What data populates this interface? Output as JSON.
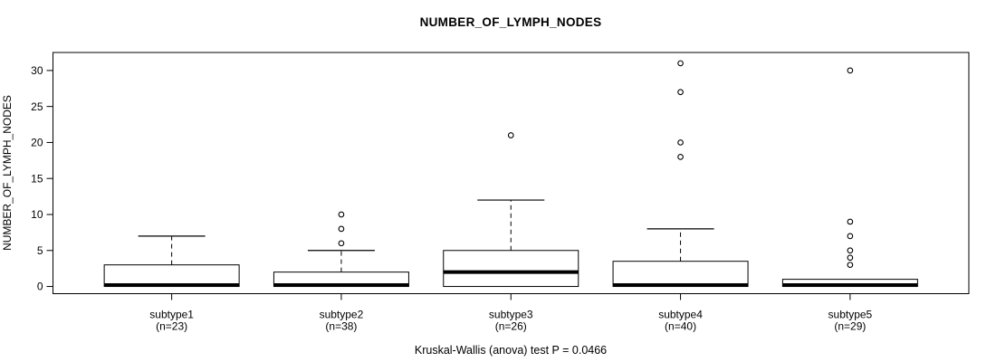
{
  "chart_data": {
    "type": "boxplot",
    "title": "NUMBER_OF_LYMPH_NODES",
    "ylabel": "NUMBER_OF_LYMPH_NODES",
    "caption": "Kruskal-Wallis (anova) test P = 0.0466",
    "p_value": 0.0466,
    "ylim": [
      -1,
      32.5
    ],
    "yticks": [
      0,
      5,
      10,
      15,
      20,
      25,
      30
    ],
    "grid": false,
    "colors": {
      "line": "#000000",
      "box_fill": "#ffffff",
      "background": "#ffffff"
    },
    "groups": [
      {
        "label": "subtype1",
        "sublabel": "(n=23)",
        "n": 23,
        "q1": 0,
        "median": 0,
        "q3": 3,
        "whisker_low": 0,
        "whisker_high": 7,
        "outliers": []
      },
      {
        "label": "subtype2",
        "sublabel": "(n=38)",
        "n": 38,
        "q1": 0,
        "median": 0,
        "q3": 2,
        "whisker_low": 0,
        "whisker_high": 5,
        "outliers": [
          6,
          8,
          10
        ]
      },
      {
        "label": "subtype3",
        "sublabel": "(n=26)",
        "n": 26,
        "q1": 0,
        "median": 2,
        "q3": 5,
        "whisker_low": 0,
        "whisker_high": 12,
        "outliers": [
          21
        ]
      },
      {
        "label": "subtype4",
        "sublabel": "(n=40)",
        "n": 40,
        "q1": 0,
        "median": 0,
        "q3": 3.5,
        "whisker_low": 0,
        "whisker_high": 8,
        "outliers": [
          18,
          20,
          27,
          31
        ]
      },
      {
        "label": "subtype5",
        "sublabel": "(n=29)",
        "n": 29,
        "q1": 0,
        "median": 0,
        "q3": 1,
        "whisker_low": 0,
        "whisker_high": 1,
        "outliers": [
          3,
          4,
          5,
          7,
          9,
          30
        ]
      }
    ]
  }
}
